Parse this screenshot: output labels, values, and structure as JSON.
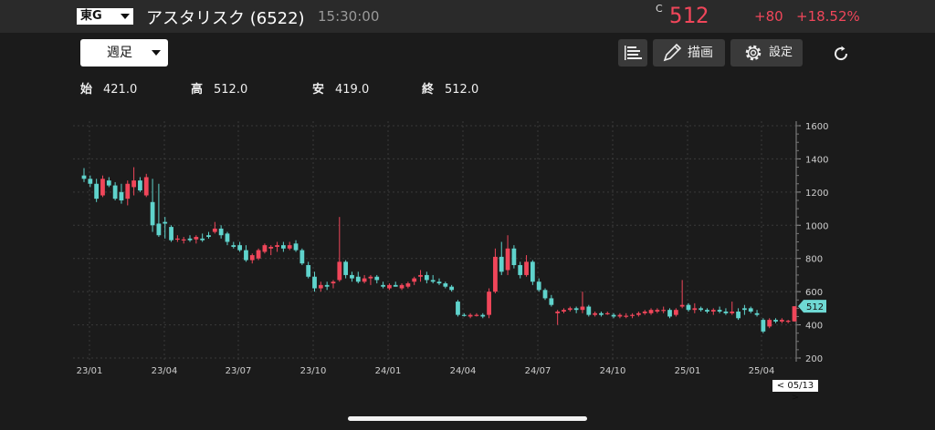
{
  "header": {
    "market": "東G",
    "title": "アスタリスク (6522)",
    "time": "15:30:00",
    "close_mark": "C",
    "price": "512",
    "change": "+80",
    "change_pct": "+18.52%",
    "up_color": "#f0465a",
    "down_color": "#5fd3cc"
  },
  "toolbar": {
    "period": "週足",
    "draw_label": "描画",
    "settings_label": "設定"
  },
  "ohlc": {
    "open_label": "始",
    "open": "421.0",
    "high_label": "高",
    "high": "512.0",
    "low_label": "安",
    "low": "419.0",
    "close_label": "終",
    "close": "512.0"
  },
  "chart_data": {
    "type": "candlestick",
    "title": "",
    "x_ticks": [
      "23/01",
      "23/04",
      "23/07",
      "23/10",
      "24/01",
      "24/04",
      "24/07",
      "24/10",
      "25/01",
      "25/04"
    ],
    "y_ticks": [
      200,
      400,
      600,
      800,
      1000,
      1200,
      1400,
      1600
    ],
    "ylim": [
      200,
      1600
    ],
    "last_price_tag": "512",
    "cursor_label": "< 05/13 >",
    "candles": [
      [
        1300,
        1345,
        1260,
        1280
      ],
      [
        1280,
        1300,
        1230,
        1250
      ],
      [
        1250,
        1280,
        1140,
        1160
      ],
      [
        1180,
        1300,
        1170,
        1280
      ],
      [
        1270,
        1290,
        1230,
        1240
      ],
      [
        1240,
        1260,
        1150,
        1160
      ],
      [
        1200,
        1250,
        1130,
        1150
      ],
      [
        1160,
        1270,
        1120,
        1250
      ],
      [
        1230,
        1350,
        1180,
        1270
      ],
      [
        1270,
        1290,
        1200,
        1210
      ],
      [
        1180,
        1310,
        1170,
        1290
      ],
      [
        1140,
        1280,
        960,
        1000
      ],
      [
        1010,
        1250,
        930,
        940
      ],
      [
        1020,
        1050,
        920,
        1010
      ],
      [
        990,
        1000,
        900,
        910
      ],
      [
        920,
        940,
        900,
        920
      ],
      [
        910,
        930,
        890,
        915
      ],
      [
        920,
        940,
        900,
        910
      ],
      [
        915,
        940,
        890,
        930
      ],
      [
        920,
        950,
        900,
        910
      ],
      [
        940,
        960,
        920,
        930
      ],
      [
        960,
        1020,
        950,
        980
      ],
      [
        980,
        1000,
        920,
        940
      ],
      [
        950,
        960,
        880,
        900
      ],
      [
        880,
        900,
        860,
        870
      ],
      [
        880,
        900,
        840,
        850
      ],
      [
        850,
        880,
        780,
        790
      ],
      [
        790,
        830,
        770,
        820
      ],
      [
        800,
        860,
        790,
        850
      ],
      [
        840,
        890,
        830,
        880
      ],
      [
        860,
        880,
        820,
        870
      ],
      [
        870,
        900,
        840,
        880
      ],
      [
        880,
        900,
        840,
        860
      ],
      [
        860,
        900,
        850,
        880
      ],
      [
        890,
        910,
        840,
        850
      ],
      [
        850,
        860,
        760,
        770
      ],
      [
        760,
        780,
        680,
        690
      ],
      [
        690,
        720,
        600,
        620
      ],
      [
        620,
        660,
        600,
        640
      ],
      [
        640,
        660,
        610,
        630
      ],
      [
        650,
        670,
        620,
        660
      ],
      [
        670,
        1050,
        660,
        780
      ],
      [
        780,
        790,
        680,
        700
      ],
      [
        700,
        720,
        660,
        680
      ],
      [
        690,
        720,
        650,
        660
      ],
      [
        660,
        700,
        650,
        680
      ],
      [
        680,
        700,
        640,
        690
      ],
      [
        690,
        700,
        650,
        670
      ],
      [
        640,
        660,
        620,
        630
      ],
      [
        620,
        650,
        610,
        640
      ],
      [
        640,
        660,
        630,
        630
      ],
      [
        620,
        650,
        610,
        640
      ],
      [
        630,
        660,
        620,
        650
      ],
      [
        660,
        690,
        640,
        680
      ],
      [
        690,
        730,
        660,
        700
      ],
      [
        700,
        720,
        650,
        670
      ],
      [
        670,
        700,
        650,
        660
      ],
      [
        660,
        680,
        640,
        650
      ],
      [
        650,
        660,
        620,
        630
      ],
      [
        630,
        640,
        600,
        610
      ],
      [
        540,
        550,
        450,
        460
      ],
      [
        460,
        470,
        450,
        455
      ],
      [
        450,
        470,
        440,
        460
      ],
      [
        460,
        470,
        450,
        460
      ],
      [
        460,
        470,
        440,
        450
      ],
      [
        460,
        620,
        440,
        600
      ],
      [
        600,
        860,
        590,
        810
      ],
      [
        810,
        900,
        700,
        720
      ],
      [
        730,
        940,
        700,
        860
      ],
      [
        860,
        880,
        740,
        760
      ],
      [
        760,
        780,
        680,
        700
      ],
      [
        700,
        820,
        690,
        780
      ],
      [
        780,
        790,
        640,
        660
      ],
      [
        660,
        680,
        600,
        610
      ],
      [
        610,
        620,
        550,
        560
      ],
      [
        560,
        580,
        510,
        520
      ],
      [
        470,
        490,
        400,
        480
      ],
      [
        480,
        500,
        470,
        490
      ],
      [
        490,
        510,
        480,
        500
      ],
      [
        500,
        510,
        470,
        490
      ],
      [
        490,
        600,
        470,
        510
      ],
      [
        510,
        520,
        450,
        460
      ],
      [
        460,
        480,
        450,
        470
      ],
      [
        470,
        480,
        450,
        460
      ],
      [
        470,
        480,
        460,
        470
      ],
      [
        460,
        470,
        440,
        450
      ],
      [
        450,
        470,
        440,
        460
      ],
      [
        450,
        470,
        440,
        455
      ],
      [
        460,
        470,
        440,
        460
      ],
      [
        460,
        480,
        450,
        470
      ],
      [
        470,
        490,
        460,
        480
      ],
      [
        470,
        500,
        460,
        490
      ],
      [
        480,
        500,
        470,
        490
      ],
      [
        490,
        510,
        470,
        490
      ],
      [
        490,
        500,
        440,
        450
      ],
      [
        460,
        500,
        450,
        490
      ],
      [
        510,
        670,
        500,
        520
      ],
      [
        520,
        530,
        480,
        490
      ],
      [
        490,
        530,
        470,
        500
      ],
      [
        500,
        510,
        480,
        490
      ],
      [
        490,
        500,
        470,
        480
      ],
      [
        480,
        500,
        460,
        490
      ],
      [
        490,
        510,
        470,
        480
      ],
      [
        480,
        500,
        460,
        470
      ],
      [
        470,
        540,
        460,
        480
      ],
      [
        480,
        500,
        430,
        440
      ],
      [
        500,
        520,
        460,
        490
      ],
      [
        500,
        510,
        470,
        480
      ],
      [
        470,
        490,
        450,
        460
      ],
      [
        430,
        440,
        350,
        360
      ],
      [
        390,
        440,
        380,
        430
      ],
      [
        430,
        440,
        410,
        420
      ],
      [
        420,
        440,
        410,
        430
      ],
      [
        420,
        430,
        410,
        425
      ],
      [
        421,
        512,
        419,
        512
      ]
    ]
  }
}
